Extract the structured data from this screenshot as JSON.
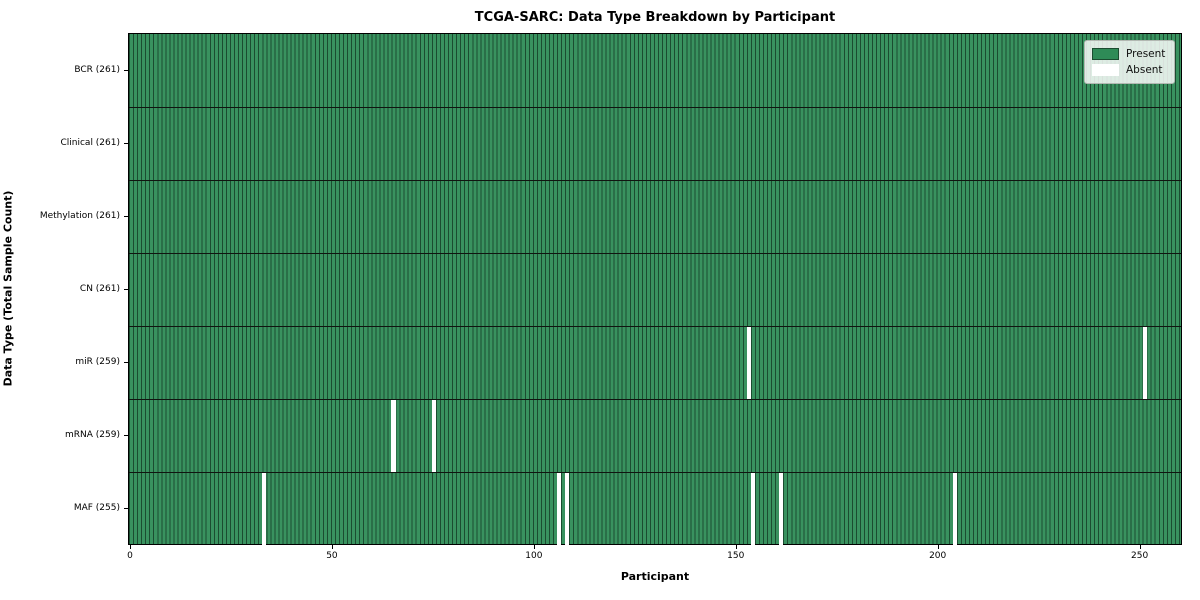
{
  "title": "TCGA-SARC: Data Type Breakdown by Participant",
  "xlabel": "Participant",
  "ylabel": "Data Type (Total Sample Count)",
  "legend": {
    "position": "upper right",
    "present_label": "Present",
    "absent_label": "Absent"
  },
  "colors": {
    "present": "#2e8b57",
    "present_fill": "#39925f",
    "bar_edge": "#1b4c30",
    "absent": "#ffffff",
    "row_divider": "#101510",
    "spine": "#000000"
  },
  "chart_data": {
    "type": "heatmap",
    "title": "TCGA-SARC: Data Type Breakdown by Participant",
    "xlabel": "Participant",
    "ylabel": "Data Type (Total Sample Count)",
    "legend": [
      "Present",
      "Absent"
    ],
    "legend_position": "upper right",
    "grid": false,
    "n_participants": 261,
    "x_ticks": [
      0,
      50,
      100,
      150,
      200,
      250
    ],
    "rows": [
      {
        "data_type": "BCR",
        "label": "BCR (261)",
        "total": 261,
        "absent_participants": []
      },
      {
        "data_type": "Clinical",
        "label": "Clinical (261)",
        "total": 261,
        "absent_participants": []
      },
      {
        "data_type": "Methylation",
        "label": "Methylation (261)",
        "total": 261,
        "absent_participants": []
      },
      {
        "data_type": "CN",
        "label": "CN (261)",
        "total": 261,
        "absent_participants": []
      },
      {
        "data_type": "miR",
        "label": "miR (259)",
        "total": 259,
        "absent_participants": [
          153,
          251
        ]
      },
      {
        "data_type": "mRNA",
        "label": "mRNA (259)",
        "total": 259,
        "absent_participants": [
          65,
          75
        ]
      },
      {
        "data_type": "MAF",
        "label": "MAF (255)",
        "total": 255,
        "absent_participants": [
          33,
          106,
          108,
          154,
          161,
          204
        ]
      }
    ]
  }
}
